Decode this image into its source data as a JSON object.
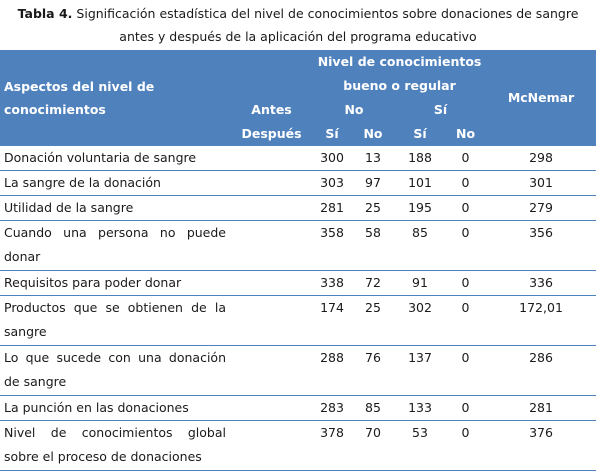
{
  "caption": {
    "label": "Tabla 4.",
    "text": "Significación estadística del nivel de conocimientos sobre donaciones de sangre antes y después de la aplicación del programa educativo"
  },
  "header": {
    "aspects": "Aspectos del nivel de conocimientos",
    "nivel_line1": "Nivel de conocimientos",
    "nivel_line2": "bueno o regular",
    "antes": "Antes",
    "despues": "Después",
    "no": "No",
    "si": "Sí",
    "mcnemar": "McNemar",
    "sub": [
      "Sí",
      "No",
      "Sí",
      "No"
    ]
  },
  "rows": [
    {
      "aspect": "Donación voluntaria de sangre",
      "v1": "300",
      "v2": "13",
      "v3": "188",
      "v4": "0",
      "mcnemar": "298"
    },
    {
      "aspect": "La sangre de la donación",
      "v1": "303",
      "v2": "97",
      "v3": "101",
      "v4": "0",
      "mcnemar": "301"
    },
    {
      "aspect": "Utilidad de la sangre",
      "v1": "281",
      "v2": "25",
      "v3": "195",
      "v4": "0",
      "mcnemar": "279"
    },
    {
      "aspect": "Cuando una persona no puede donar",
      "v1": "358",
      "v2": "58",
      "v3": "85",
      "v4": "0",
      "mcnemar": "356"
    },
    {
      "aspect": "Requisitos para poder donar",
      "v1": "338",
      "v2": "72",
      "v3": "91",
      "v4": "0",
      "mcnemar": "336"
    },
    {
      "aspect": "Productos que se obtienen de la sangre",
      "v1": "174",
      "v2": "25",
      "v3": "302",
      "v4": "0",
      "mcnemar": "172,01"
    },
    {
      "aspect": "Lo que sucede con una donación de sangre",
      "v1": "288",
      "v2": "76",
      "v3": "137",
      "v4": "0",
      "mcnemar": "286"
    },
    {
      "aspect": "La punción en las donaciones",
      "v1": "283",
      "v2": "85",
      "v3": "133",
      "v4": "0",
      "mcnemar": "281"
    },
    {
      "aspect": "Nivel de conocimientos global sobre el proceso de donaciones",
      "v1": "378",
      "v2": "70",
      "v3": "53",
      "v4": "0",
      "mcnemar": "376"
    }
  ]
}
